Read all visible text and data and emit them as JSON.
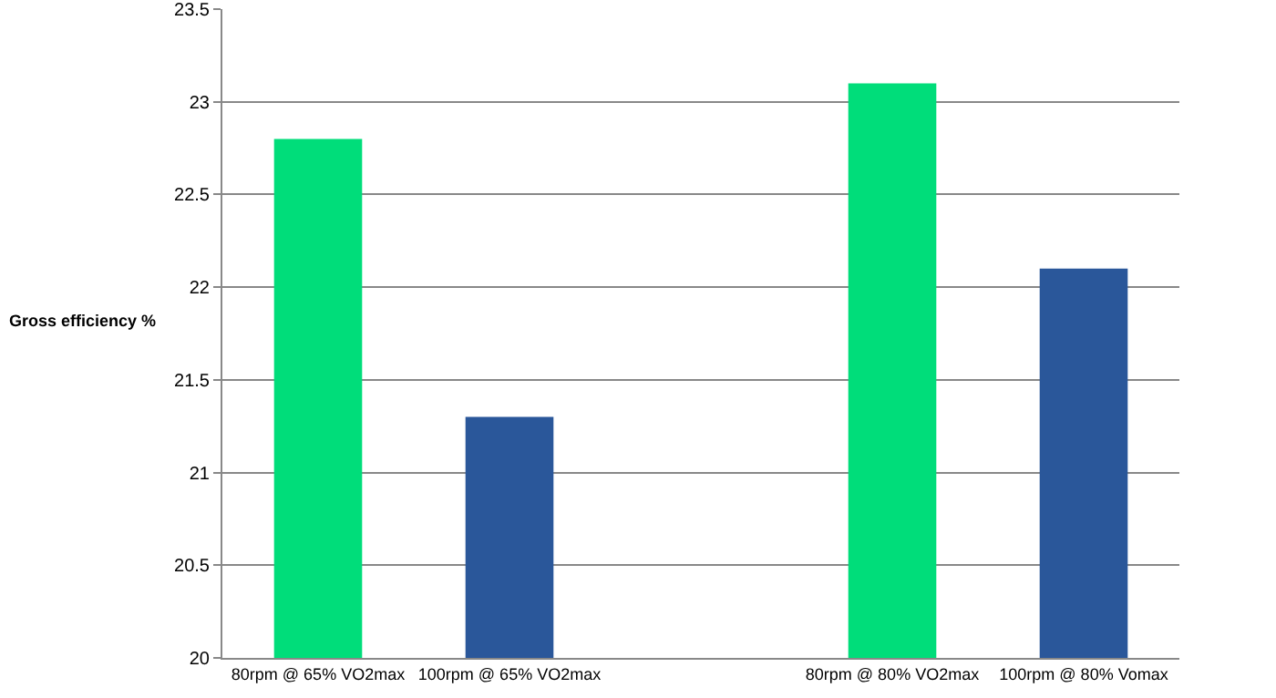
{
  "chart_data": {
    "type": "bar",
    "ylabel": "Gross efficiency %",
    "categories": [
      "80rpm @ 65% VO2max",
      "100rpm @ 65% VO2max",
      null,
      "80rpm @ 80% VO2max",
      "100rpm @ 80% Vomax"
    ],
    "values": [
      22.8,
      21.3,
      null,
      23.1,
      22.1
    ],
    "colors": [
      "#00dd7a",
      "#2a579a",
      "#00dd7a",
      "#00dd7a",
      "#2a579a"
    ],
    "ylim": [
      20,
      23.5
    ],
    "yticks": [
      20,
      20.5,
      21,
      21.5,
      22,
      22.5,
      23,
      23.5
    ],
    "grid": "y"
  }
}
